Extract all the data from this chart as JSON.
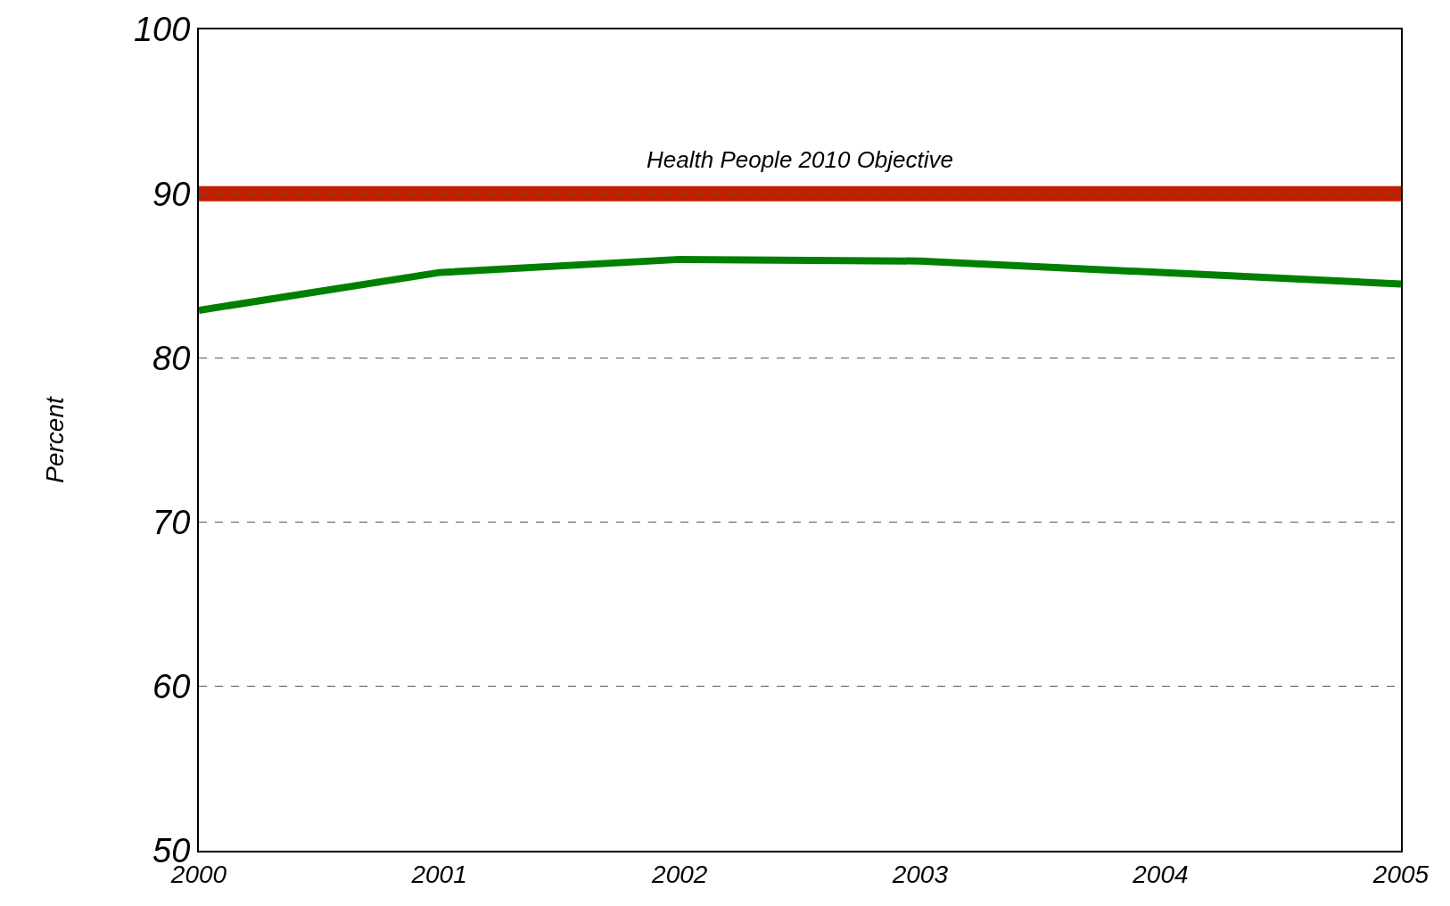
{
  "chart_data": {
    "type": "line",
    "ylabel": "Percent",
    "x": [
      2000,
      2001,
      2002,
      2003,
      2004,
      2005
    ],
    "series": [
      {
        "color": "#008000",
        "values": [
          82.9,
          85.2,
          86.0,
          85.9,
          85.2,
          84.5
        ]
      }
    ],
    "xlim": [
      2000,
      2005
    ],
    "xticks": [
      2000,
      2001,
      2002,
      2003,
      2004,
      2005
    ],
    "ylim": [
      50,
      100
    ],
    "yticks": [
      50,
      60,
      70,
      80,
      90,
      100
    ],
    "ref_lines": [
      {
        "axis": "y",
        "value": 90,
        "label": "Health People 2010 Objective",
        "color": "#c02000"
      }
    ],
    "grid": "y",
    "marker": "none",
    "line_style": "solid"
  }
}
